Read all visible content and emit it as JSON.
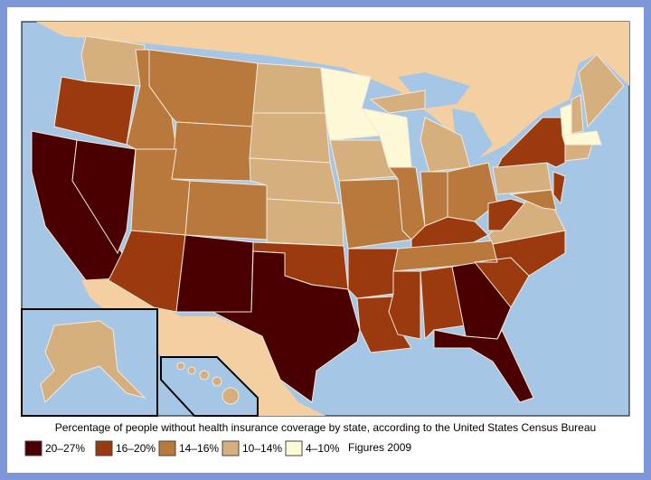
{
  "caption": "Percentage of people without health insurance coverage by state, according to the United States Census Bureau",
  "legend": [
    {
      "label": "20–27%",
      "color": "#4a0000"
    },
    {
      "label": "16–20%",
      "color": "#9a3a0e"
    },
    {
      "label": "14–16%",
      "color": "#b9783c"
    },
    {
      "label": "10–14%",
      "color": "#d6af7e"
    },
    {
      "label": "4–10%",
      "color": "#fdf8d6"
    }
  ],
  "note": "Figures 2009"
}
